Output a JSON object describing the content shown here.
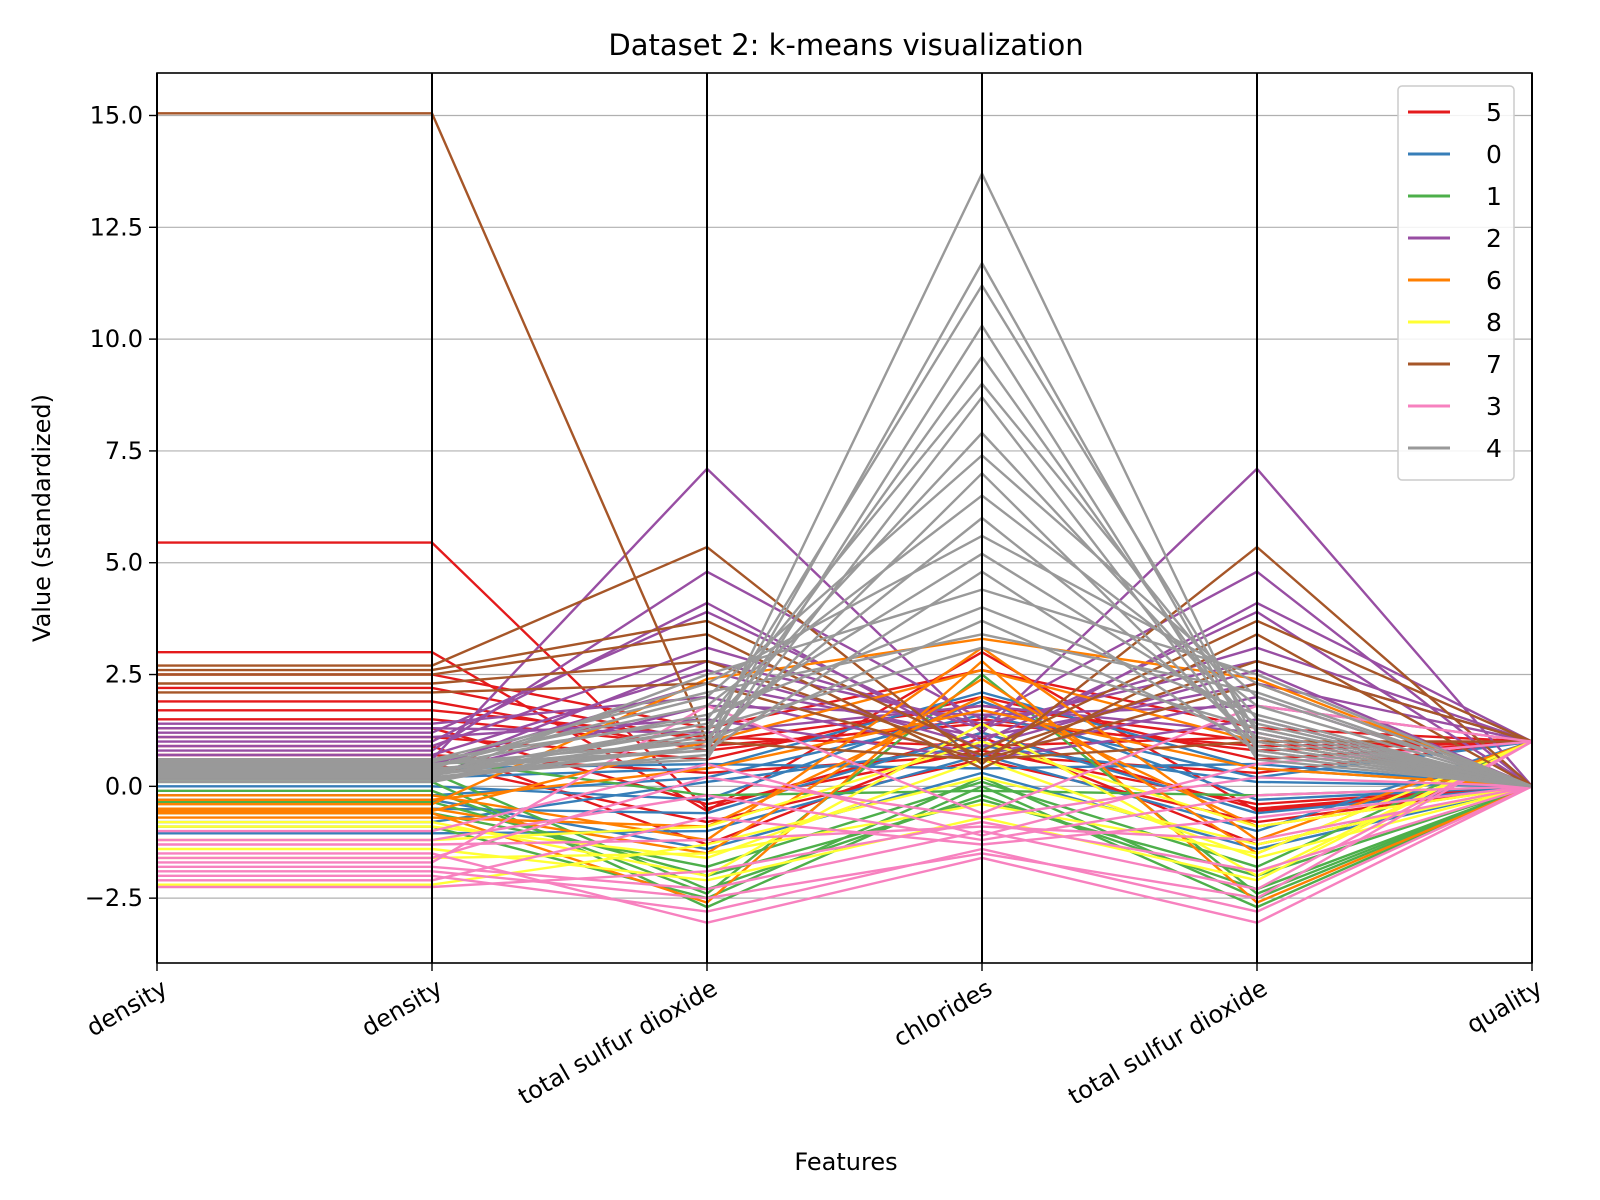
{
  "chart_data": {
    "type": "line",
    "subtype": "parallel-coordinates",
    "title": "Dataset 2: k-means visualization",
    "xlabel": "Features",
    "ylabel": "Value (standardized)",
    "categories": [
      "density",
      "density",
      "total sulfur dioxide",
      "chlorides",
      "total sulfur dioxide",
      "quality"
    ],
    "ylim": [
      -3.95,
      15.95
    ],
    "yticks": [
      -2.5,
      0.0,
      2.5,
      5.0,
      7.5,
      10.0,
      12.5,
      15.0
    ],
    "ytick_labels": [
      "−2.5",
      "0.0",
      "2.5",
      "5.0",
      "7.5",
      "10.0",
      "12.5",
      "15.0"
    ],
    "grid": "y",
    "legend_position": "top-right",
    "legend": [
      "5",
      "0",
      "1",
      "2",
      "6",
      "8",
      "7",
      "3",
      "4"
    ],
    "series": [
      {
        "name": "5",
        "color": "#e41a1c",
        "lines": [
          [
            5.45,
            5.45,
            -0.5,
            1.2,
            -0.5,
            0.0
          ],
          [
            3.0,
            3.0,
            -0.55,
            3.0,
            -0.55,
            0.0
          ],
          [
            2.2,
            2.2,
            1.0,
            1.8,
            1.0,
            1.0
          ],
          [
            1.9,
            1.9,
            0.8,
            1.5,
            0.8,
            1.0
          ],
          [
            1.7,
            1.7,
            1.1,
            0.9,
            1.1,
            0.0
          ],
          [
            1.5,
            1.5,
            0.9,
            1.4,
            0.9,
            1.0
          ],
          [
            1.3,
            1.3,
            -0.4,
            0.8,
            -0.4,
            0.0
          ],
          [
            1.1,
            1.1,
            0.6,
            2.0,
            0.6,
            1.0
          ],
          [
            0.9,
            0.9,
            -1.3,
            1.1,
            -1.3,
            0.0
          ],
          [
            0.7,
            0.7,
            0.3,
            0.7,
            0.3,
            1.0
          ],
          [
            0.5,
            0.5,
            -0.8,
            0.6,
            -0.8,
            0.0
          ],
          [
            2.5,
            2.5,
            1.3,
            2.6,
            1.3,
            1.0
          ]
        ]
      },
      {
        "name": "0",
        "color": "#377eb8",
        "lines": [
          [
            0.2,
            0.2,
            0.4,
            2.1,
            0.4,
            0.0
          ],
          [
            0.0,
            0.0,
            -0.3,
            1.9,
            -0.3,
            0.0
          ],
          [
            -0.2,
            -0.2,
            0.2,
            1.6,
            0.2,
            1.0
          ],
          [
            -0.5,
            -0.5,
            -0.6,
            1.2,
            -0.6,
            0.0
          ],
          [
            -0.8,
            -0.8,
            0.1,
            0.9,
            0.1,
            0.0
          ],
          [
            -1.05,
            -1.05,
            -1.0,
            0.7,
            -1.0,
            1.0
          ],
          [
            0.4,
            0.4,
            0.5,
            0.4,
            0.5,
            0.0
          ],
          [
            -0.3,
            -0.3,
            -1.4,
            0.3,
            -1.4,
            0.0
          ]
        ]
      },
      {
        "name": "1",
        "color": "#4daf4a",
        "lines": [
          [
            0.3,
            0.3,
            -2.3,
            -0.2,
            -2.3,
            0.0
          ],
          [
            0.1,
            0.1,
            -2.7,
            0.0,
            -2.7,
            0.0
          ],
          [
            -0.1,
            -0.1,
            -2.4,
            2.5,
            -2.4,
            0.0
          ],
          [
            -0.35,
            -0.35,
            -2.0,
            -0.3,
            -2.0,
            0.0
          ],
          [
            -0.6,
            -0.6,
            -1.8,
            0.1,
            -1.8,
            1.0
          ],
          [
            0.6,
            0.6,
            -0.2,
            -0.1,
            -0.2,
            0.0
          ],
          [
            -0.9,
            -0.9,
            -2.5,
            0.2,
            -2.5,
            0.0
          ]
        ]
      },
      {
        "name": "2",
        "color": "#984ea3",
        "lines": [
          [
            0.6,
            0.6,
            7.1,
            1.2,
            7.1,
            0.0
          ],
          [
            0.8,
            0.8,
            4.8,
            1.5,
            4.8,
            0.0
          ],
          [
            1.0,
            1.0,
            4.1,
            0.8,
            4.1,
            1.0
          ],
          [
            1.2,
            1.2,
            3.9,
            1.0,
            3.9,
            0.0
          ],
          [
            0.9,
            0.9,
            3.1,
            1.3,
            3.1,
            1.0
          ],
          [
            0.7,
            0.7,
            2.6,
            0.9,
            2.6,
            0.0
          ],
          [
            0.5,
            0.5,
            2.3,
            1.1,
            2.3,
            1.0
          ],
          [
            1.4,
            1.4,
            2.0,
            0.7,
            2.0,
            0.0
          ],
          [
            0.3,
            0.3,
            1.8,
            1.6,
            1.8,
            1.0
          ],
          [
            1.1,
            1.1,
            1.5,
            0.6,
            1.5,
            0.0
          ],
          [
            0.4,
            0.4,
            2.8,
            1.4,
            2.8,
            1.0
          ],
          [
            1.3,
            1.3,
            1.2,
            1.8,
            1.2,
            0.0
          ]
        ]
      },
      {
        "name": "6",
        "color": "#ff7f00",
        "lines": [
          [
            -0.4,
            -0.4,
            2.4,
            3.3,
            2.4,
            0.0
          ],
          [
            -0.6,
            -0.6,
            -2.6,
            2.8,
            -2.6,
            0.0
          ],
          [
            -0.5,
            -0.5,
            -1.5,
            2.4,
            -1.5,
            1.0
          ],
          [
            -0.7,
            -0.7,
            -0.9,
            2.0,
            -0.9,
            0.0
          ],
          [
            -0.3,
            -0.3,
            0.4,
            1.7,
            0.4,
            0.0
          ],
          [
            -0.2,
            -0.2,
            -1.2,
            3.1,
            -1.2,
            1.0
          ],
          [
            -0.55,
            -0.55,
            1.0,
            2.6,
            1.0,
            0.0
          ]
        ]
      },
      {
        "name": "8",
        "color": "#ffff33",
        "lines": [
          [
            -0.8,
            -0.8,
            -2.0,
            1.4,
            -2.0,
            1.0
          ],
          [
            -0.9,
            -0.9,
            -1.6,
            0.6,
            -1.6,
            0.0
          ],
          [
            -1.6,
            -1.6,
            -1.5,
            -0.4,
            -1.5,
            1.0
          ],
          [
            -2.2,
            -2.2,
            -1.3,
            0.2,
            -1.3,
            0.0
          ],
          [
            -1.2,
            -1.2,
            -0.9,
            1.0,
            -0.9,
            0.0
          ],
          [
            -1.4,
            -1.4,
            -2.1,
            -0.7,
            -2.1,
            1.0
          ]
        ]
      },
      {
        "name": "7",
        "color": "#a65628",
        "lines": [
          [
            15.05,
            15.05,
            1.0,
            0.6,
            1.0,
            1.0
          ],
          [
            2.7,
            2.7,
            5.35,
            0.5,
            5.35,
            0.0
          ],
          [
            2.6,
            2.6,
            3.7,
            0.8,
            3.7,
            1.0
          ],
          [
            2.5,
            2.5,
            3.4,
            0.4,
            3.4,
            0.0
          ],
          [
            2.3,
            2.3,
            2.8,
            0.7,
            2.8,
            1.0
          ],
          [
            2.1,
            2.1,
            2.3,
            0.6,
            2.3,
            0.0
          ]
        ]
      },
      {
        "name": "3",
        "color": "#f781bf",
        "lines": [
          [
            -1.2,
            -1.2,
            -0.2,
            -1.2,
            -0.2,
            0.0
          ],
          [
            -1.5,
            -1.5,
            -3.05,
            -1.6,
            -3.05,
            0.0
          ],
          [
            -1.8,
            -1.8,
            -2.3,
            -1.0,
            -2.3,
            1.0
          ],
          [
            -2.0,
            -2.0,
            -2.8,
            -1.4,
            -2.8,
            0.0
          ],
          [
            -2.25,
            -2.25,
            -1.9,
            -0.8,
            -1.9,
            0.0
          ],
          [
            -1.0,
            -1.0,
            0.5,
            -1.1,
            0.5,
            1.0
          ],
          [
            -1.3,
            -1.3,
            -1.2,
            -0.9,
            -1.2,
            0.0
          ],
          [
            -1.7,
            -1.7,
            1.8,
            -0.6,
            1.8,
            1.0
          ],
          [
            -2.1,
            -2.1,
            -0.7,
            -1.3,
            -0.7,
            0.0
          ],
          [
            -1.9,
            -1.9,
            -2.5,
            -1.5,
            -2.5,
            1.0
          ],
          [
            -1.6,
            -1.6,
            0.2,
            -0.7,
            0.2,
            0.0
          ]
        ]
      },
      {
        "name": "4",
        "color": "#999999",
        "lines": [
          [
            0.2,
            0.2,
            0.9,
            13.7,
            0.9,
            0.0
          ],
          [
            0.4,
            0.4,
            0.8,
            11.7,
            0.8,
            0.0
          ],
          [
            0.1,
            0.1,
            1.2,
            11.2,
            1.2,
            0.0
          ],
          [
            0.3,
            0.3,
            0.6,
            10.3,
            0.6,
            0.0
          ],
          [
            0.5,
            0.5,
            1.0,
            9.6,
            1.0,
            0.0
          ],
          [
            0.6,
            0.6,
            1.5,
            9.0,
            1.5,
            0.0
          ],
          [
            0.2,
            0.2,
            0.7,
            8.7,
            0.7,
            0.0
          ],
          [
            0.35,
            0.35,
            1.3,
            7.9,
            1.3,
            0.0
          ],
          [
            0.45,
            0.45,
            2.0,
            7.4,
            2.0,
            0.0
          ],
          [
            0.15,
            0.15,
            0.9,
            7.0,
            0.9,
            0.0
          ],
          [
            0.55,
            0.55,
            1.8,
            6.5,
            1.8,
            0.0
          ],
          [
            0.25,
            0.25,
            1.1,
            6.0,
            1.1,
            0.0
          ],
          [
            0.4,
            0.4,
            2.3,
            5.6,
            2.3,
            0.0
          ],
          [
            0.3,
            0.3,
            1.4,
            5.2,
            1.4,
            0.0
          ],
          [
            0.5,
            0.5,
            0.8,
            4.8,
            0.8,
            0.0
          ],
          [
            0.2,
            0.2,
            2.5,
            4.4,
            2.5,
            0.0
          ],
          [
            0.45,
            0.45,
            1.6,
            4.0,
            1.6,
            0.0
          ],
          [
            0.35,
            0.35,
            1.0,
            3.7,
            1.0,
            0.0
          ],
          [
            0.6,
            0.6,
            2.1,
            3.4,
            2.1,
            0.0
          ],
          [
            0.25,
            0.25,
            1.3,
            3.1,
            1.3,
            0.0
          ]
        ]
      }
    ]
  }
}
